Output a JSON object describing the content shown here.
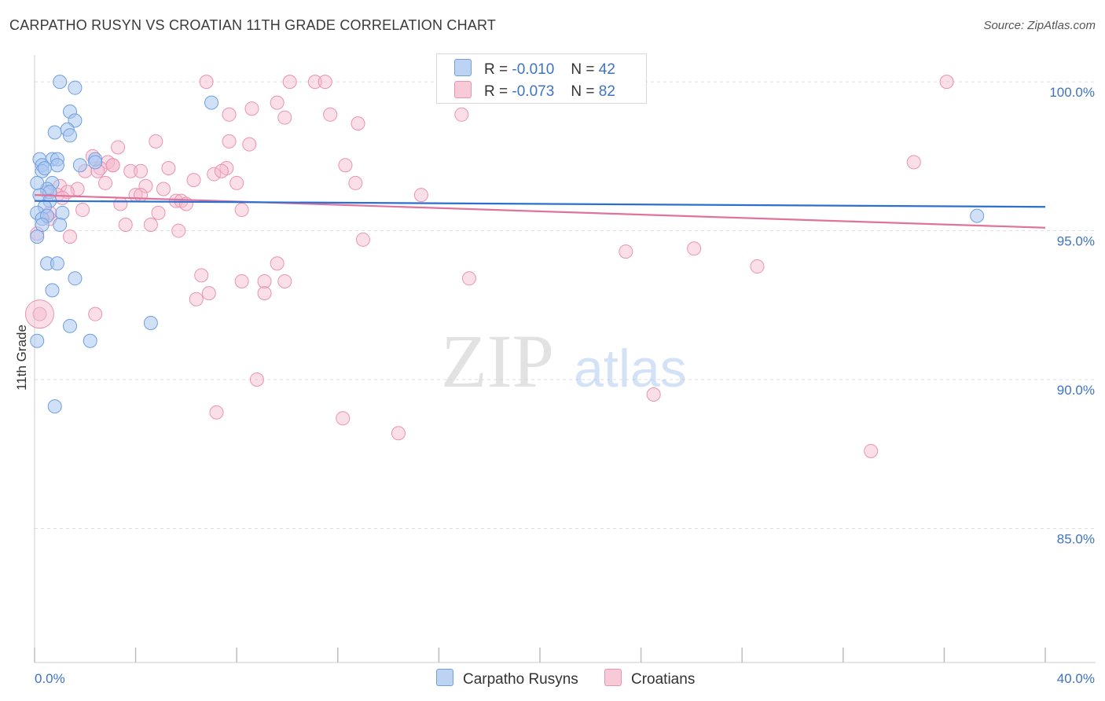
{
  "title": "CARPATHO RUSYN VS CROATIAN 11TH GRADE CORRELATION CHART",
  "source": "Source: ZipAtlas.com",
  "watermark": {
    "zip": "ZIP",
    "atlas": "atlas"
  },
  "legend": {
    "rows": [
      {
        "r_label": "R =",
        "r_value": "-0.010",
        "n_label": "N =",
        "n_value": "42"
      },
      {
        "r_label": "R =",
        "r_value": "-0.073",
        "n_label": "N =",
        "n_value": "82"
      }
    ]
  },
  "bottom_legend": [
    "Carpatho Rusyns",
    "Croatians"
  ],
  "colors": {
    "blue_fill": "#a9c6f0",
    "blue_stroke": "#6f9fe0",
    "blue_line": "#2c6fcf",
    "pink_fill": "#f5b8cb",
    "pink_stroke": "#ea93b0",
    "pink_line": "#e0739b",
    "tick_text": "#3e73c4",
    "grid": "#dddddd"
  },
  "chart_data": {
    "type": "scatter",
    "title": "CARPATHO RUSYN VS CROATIAN 11TH GRADE CORRELATION CHART",
    "xlabel": "",
    "ylabel": "11th Grade",
    "xlim": [
      0,
      40
    ],
    "ylim": [
      80.5,
      100.9
    ],
    "x_tick_labels": [
      "0.0%",
      "40.0%"
    ],
    "y_ticks": [
      85,
      90,
      95,
      100
    ],
    "y_tick_labels": [
      "85.0%",
      "90.0%",
      "95.0%",
      "100.0%"
    ],
    "grid": "horizontal dashed",
    "legend_position": "top-center",
    "series": [
      {
        "name": "Carpatho Rusyns",
        "r": -0.01,
        "n": 42,
        "trend": {
          "x": [
            0,
            40
          ],
          "y": [
            96.0,
            95.8
          ]
        },
        "points": [
          [
            1.0,
            100.0
          ],
          [
            1.6,
            99.8
          ],
          [
            7.0,
            99.3
          ],
          [
            1.4,
            99.0
          ],
          [
            1.6,
            98.7
          ],
          [
            0.8,
            98.3
          ],
          [
            1.3,
            98.4
          ],
          [
            1.4,
            98.2
          ],
          [
            0.2,
            97.4
          ],
          [
            0.7,
            97.4
          ],
          [
            0.9,
            97.4
          ],
          [
            0.3,
            97.2
          ],
          [
            0.9,
            97.2
          ],
          [
            1.8,
            97.2
          ],
          [
            2.4,
            97.4
          ],
          [
            0.3,
            97.0
          ],
          [
            0.7,
            96.6
          ],
          [
            0.5,
            96.4
          ],
          [
            0.6,
            96.3
          ],
          [
            0.2,
            96.2
          ],
          [
            0.6,
            96.0
          ],
          [
            0.4,
            95.8
          ],
          [
            0.1,
            95.6
          ],
          [
            1.1,
            95.6
          ],
          [
            0.3,
            95.4
          ],
          [
            0.5,
            95.5
          ],
          [
            1.0,
            95.2
          ],
          [
            0.3,
            95.2
          ],
          [
            0.1,
            94.8
          ],
          [
            0.5,
            93.9
          ],
          [
            0.9,
            93.9
          ],
          [
            1.6,
            93.4
          ],
          [
            0.7,
            93.0
          ],
          [
            1.4,
            91.8
          ],
          [
            4.6,
            91.9
          ],
          [
            2.2,
            91.3
          ],
          [
            0.1,
            91.3
          ],
          [
            0.8,
            89.1
          ],
          [
            37.3,
            95.5
          ],
          [
            0.1,
            96.6
          ],
          [
            0.4,
            97.1
          ],
          [
            2.4,
            97.3
          ]
        ]
      },
      {
        "name": "Croatians",
        "r": -0.073,
        "n": 82,
        "trend": {
          "x": [
            0,
            40
          ],
          "y": [
            96.2,
            95.1
          ]
        },
        "points": [
          [
            6.8,
            100.0
          ],
          [
            10.1,
            100.0
          ],
          [
            11.1,
            100.0
          ],
          [
            11.5,
            100.0
          ],
          [
            22.6,
            100.0
          ],
          [
            36.1,
            100.0
          ],
          [
            9.6,
            99.3
          ],
          [
            8.6,
            99.1
          ],
          [
            11.7,
            98.9
          ],
          [
            7.7,
            98.9
          ],
          [
            9.9,
            98.8
          ],
          [
            12.8,
            98.6
          ],
          [
            16.9,
            98.9
          ],
          [
            4.8,
            98.0
          ],
          [
            7.7,
            98.0
          ],
          [
            8.5,
            97.9
          ],
          [
            3.3,
            97.8
          ],
          [
            2.3,
            97.5
          ],
          [
            2.9,
            97.3
          ],
          [
            3.1,
            97.2
          ],
          [
            2.6,
            97.1
          ],
          [
            5.3,
            97.1
          ],
          [
            7.6,
            97.1
          ],
          [
            12.3,
            97.2
          ],
          [
            34.8,
            97.3
          ],
          [
            2.0,
            97.0
          ],
          [
            3.8,
            97.0
          ],
          [
            4.2,
            97.0
          ],
          [
            7.1,
            96.9
          ],
          [
            6.3,
            96.7
          ],
          [
            2.8,
            96.6
          ],
          [
            8.0,
            96.6
          ],
          [
            12.7,
            96.6
          ],
          [
            4.4,
            96.5
          ],
          [
            5.1,
            96.4
          ],
          [
            1.7,
            96.4
          ],
          [
            1.0,
            96.5
          ],
          [
            1.3,
            96.3
          ],
          [
            0.9,
            96.2
          ],
          [
            0.5,
            96.3
          ],
          [
            4.0,
            96.2
          ],
          [
            4.2,
            96.2
          ],
          [
            15.3,
            96.2
          ],
          [
            5.6,
            96.0
          ],
          [
            5.8,
            96.0
          ],
          [
            6.0,
            95.9
          ],
          [
            3.4,
            95.9
          ],
          [
            1.9,
            95.7
          ],
          [
            8.2,
            95.7
          ],
          [
            4.9,
            95.6
          ],
          [
            0.6,
            95.4
          ],
          [
            3.6,
            95.2
          ],
          [
            4.6,
            95.2
          ],
          [
            5.7,
            95.0
          ],
          [
            1.4,
            94.8
          ],
          [
            13.0,
            94.7
          ],
          [
            0.1,
            94.9
          ],
          [
            23.4,
            94.3
          ],
          [
            26.1,
            94.4
          ],
          [
            28.6,
            93.8
          ],
          [
            9.6,
            93.9
          ],
          [
            6.6,
            93.5
          ],
          [
            17.2,
            93.4
          ],
          [
            8.2,
            93.3
          ],
          [
            9.1,
            93.3
          ],
          [
            9.9,
            93.3
          ],
          [
            9.1,
            92.9
          ],
          [
            6.9,
            92.9
          ],
          [
            6.4,
            92.7
          ],
          [
            2.4,
            92.2
          ],
          [
            0.2,
            92.2
          ],
          [
            8.8,
            90.0
          ],
          [
            24.5,
            89.5
          ],
          [
            7.2,
            88.9
          ],
          [
            12.2,
            88.7
          ],
          [
            14.4,
            88.2
          ],
          [
            33.1,
            87.6
          ],
          [
            1.1,
            96.1
          ],
          [
            0.6,
            95.6
          ],
          [
            2.5,
            97.0
          ],
          [
            7.4,
            97.0
          ],
          [
            3.1,
            97.2
          ]
        ]
      }
    ]
  }
}
